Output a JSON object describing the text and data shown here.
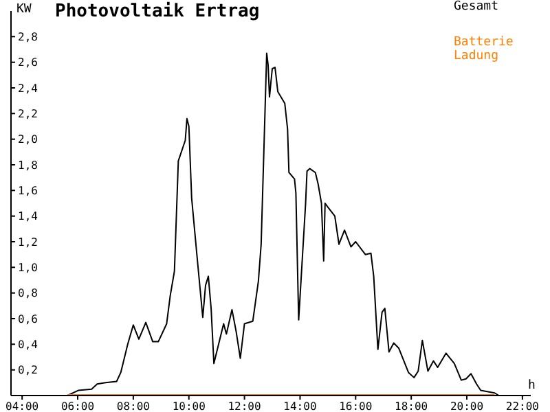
{
  "chart_data": {
    "type": "line",
    "title": "Photovoltaik Ertrag",
    "xlabel": "h",
    "ylabel": "KW",
    "xlim": [
      3.6,
      22.3
    ],
    "xticks": [
      {
        "value": 4,
        "label": "04:00"
      },
      {
        "value": 6,
        "label": "06:00"
      },
      {
        "value": 8,
        "label": "08:00"
      },
      {
        "value": 10,
        "label": "10:00"
      },
      {
        "value": 12,
        "label": "12:00"
      },
      {
        "value": 14,
        "label": "14:00"
      },
      {
        "value": 16,
        "label": "16:00"
      },
      {
        "value": 18,
        "label": "18:00"
      },
      {
        "value": 20,
        "label": "20:00"
      },
      {
        "value": 22,
        "label": "22:00"
      }
    ],
    "ylim": [
      0,
      3.0
    ],
    "yticks": [
      {
        "value": 0.2,
        "label": "0,2"
      },
      {
        "value": 0.4,
        "label": "0,4"
      },
      {
        "value": 0.6,
        "label": "0,6"
      },
      {
        "value": 0.8,
        "label": "0,8"
      },
      {
        "value": 1.0,
        "label": "1,0"
      },
      {
        "value": 1.2,
        "label": "1,2"
      },
      {
        "value": 1.4,
        "label": "1,4"
      },
      {
        "value": 1.6,
        "label": "1,6"
      },
      {
        "value": 1.8,
        "label": "1,8"
      },
      {
        "value": 2.0,
        "label": "2,0"
      },
      {
        "value": 2.2,
        "label": "2,2"
      },
      {
        "value": 2.4,
        "label": "2,4"
      },
      {
        "value": 2.6,
        "label": "2,6"
      },
      {
        "value": 2.8,
        "label": "2,8"
      }
    ],
    "grid": false,
    "legend": "top right",
    "marker": "none",
    "line_style": "solid",
    "series": [
      {
        "name": "Gesamt",
        "color": "#000000",
        "x": [
          4.0,
          5.63,
          6.02,
          6.5,
          6.7,
          7.0,
          7.4,
          7.55,
          7.8,
          8.0,
          8.2,
          8.45,
          8.7,
          8.9,
          9.2,
          9.33,
          9.48,
          9.62,
          9.87,
          9.93,
          10.0,
          10.1,
          10.3,
          10.5,
          10.6,
          10.7,
          10.8,
          10.9,
          11.25,
          11.35,
          11.55,
          11.7,
          11.85,
          12.0,
          12.3,
          12.5,
          12.6,
          12.8,
          12.85,
          12.9,
          13.0,
          13.1,
          13.2,
          13.45,
          13.55,
          13.6,
          13.8,
          13.85,
          13.95,
          14.2,
          14.25,
          14.35,
          14.55,
          14.65,
          14.77,
          14.85,
          14.9,
          15.0,
          15.25,
          15.4,
          15.6,
          15.83,
          16.0,
          16.35,
          16.55,
          16.65,
          16.8,
          16.95,
          17.05,
          17.2,
          17.37,
          17.55,
          17.9,
          18.1,
          18.25,
          18.4,
          18.6,
          18.8,
          18.95,
          19.25,
          19.55,
          19.8,
          19.97,
          20.15,
          20.35,
          20.5,
          21.0,
          21.15,
          21.5
        ],
        "values": [
          0,
          0,
          0.04,
          0.05,
          0.09,
          0.1,
          0.11,
          0.18,
          0.4,
          0.55,
          0.44,
          0.57,
          0.42,
          0.42,
          0.56,
          0.78,
          0.97,
          1.83,
          1.99,
          2.16,
          2.1,
          1.54,
          1.07,
          0.61,
          0.86,
          0.93,
          0.68,
          0.25,
          0.56,
          0.48,
          0.67,
          0.5,
          0.29,
          0.56,
          0.58,
          0.89,
          1.18,
          2.67,
          2.58,
          2.33,
          2.55,
          2.56,
          2.37,
          2.28,
          2.08,
          1.74,
          1.69,
          1.58,
          0.59,
          1.5,
          1.75,
          1.77,
          1.74,
          1.65,
          1.5,
          1.05,
          1.5,
          1.47,
          1.4,
          1.18,
          1.29,
          1.16,
          1.2,
          1.1,
          1.11,
          0.93,
          0.36,
          0.65,
          0.68,
          0.34,
          0.41,
          0.37,
          0.18,
          0.14,
          0.19,
          0.43,
          0.19,
          0.27,
          0.22,
          0.33,
          0.25,
          0.12,
          0.13,
          0.17,
          0.09,
          0.04,
          0.02,
          0,
          0
        ]
      },
      {
        "name": "Batterie Ladung",
        "color": "#ff8000",
        "x": [
          5.63,
          21.0
        ],
        "values": [
          0,
          0
        ]
      }
    ]
  }
}
